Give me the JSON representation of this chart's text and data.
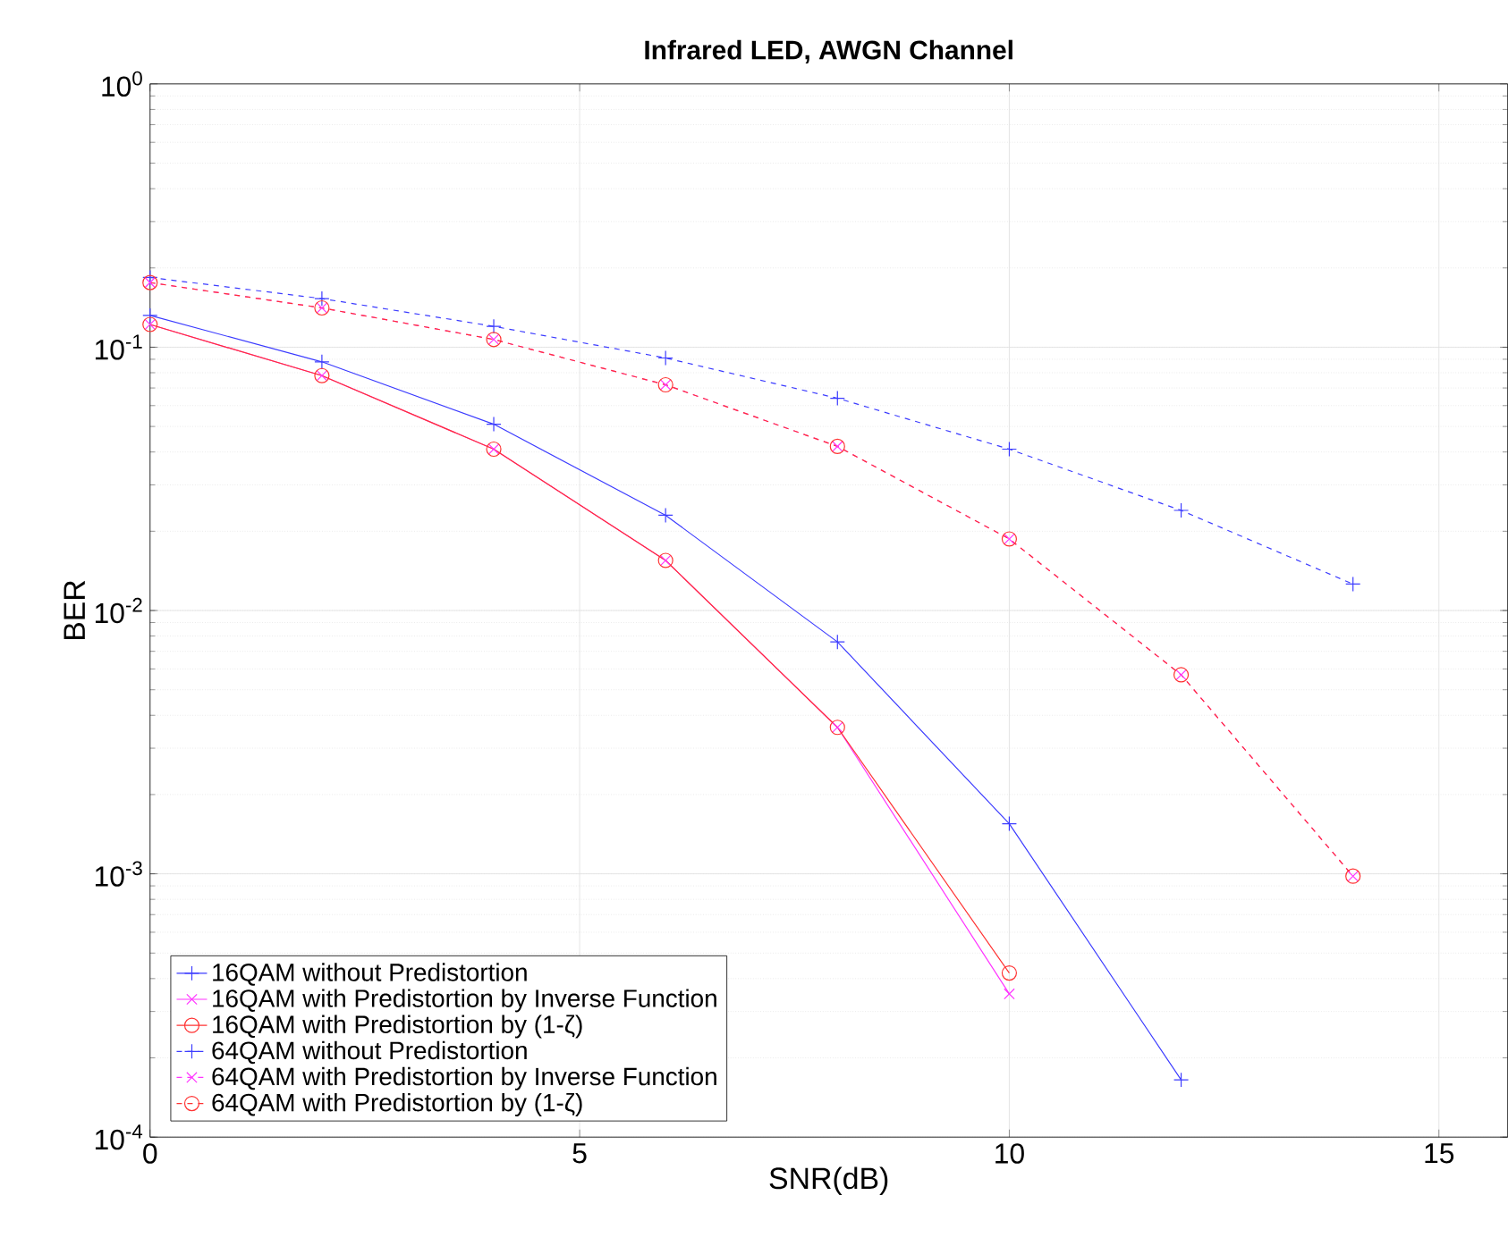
{
  "chart_data": {
    "type": "line",
    "title": "Infrared LED, AWGN Channel",
    "xlabel": "SNR(dB)",
    "ylabel": "BER",
    "log": "y",
    "grid": true,
    "legend": "bottom left",
    "xlim": [
      0,
      15.8
    ],
    "xticks": [
      0,
      5,
      10,
      15
    ],
    "ylim": [
      0.0001,
      1
    ],
    "yticks": [
      {
        "value": 0.0001,
        "label": "10$^{-4}$"
      },
      {
        "value": 0.001,
        "label": "10$^{-3}$"
      },
      {
        "value": 0.01,
        "label": "10$^{-2}$"
      },
      {
        "value": 0.1,
        "label": "10$^{-1}$"
      },
      {
        "value": 1,
        "label": "10$^{0}$"
      }
    ],
    "series": [
      {
        "name": "16QAM without Predistortion",
        "color": "#3c3cff",
        "marker": "plus",
        "line_style": "solid",
        "x": [
          0,
          2,
          4,
          6,
          8,
          10,
          12
        ],
        "values": [
          0.132,
          0.088,
          0.051,
          0.023,
          0.0076,
          0.00155,
          0.000165
        ]
      },
      {
        "name": "16QAM with Predistortion by Inverse Function",
        "color": "#ff33ff",
        "marker": "cross",
        "line_style": "solid",
        "x": [
          0,
          2,
          4,
          6,
          8,
          10
        ],
        "values": [
          0.122,
          0.078,
          0.041,
          0.0155,
          0.0036,
          0.00035
        ]
      },
      {
        "name": "16QAM with Predistortion by (1-ζ)",
        "color": "#ff3333",
        "marker": "circle",
        "line_style": "solid",
        "x": [
          0,
          2,
          4,
          6,
          8,
          10
        ],
        "values": [
          0.122,
          0.078,
          0.041,
          0.0155,
          0.0036,
          0.00042
        ]
      },
      {
        "name": "64QAM without Predistortion",
        "color": "#3c3cff",
        "marker": "plus",
        "line_style": "dashed",
        "x": [
          0,
          2,
          4,
          6,
          8,
          10,
          12,
          14
        ],
        "values": [
          0.184,
          0.153,
          0.12,
          0.091,
          0.064,
          0.041,
          0.024,
          0.0126
        ]
      },
      {
        "name": "64QAM with Predistortion by Inverse Function",
        "color": "#ff33ff",
        "marker": "cross",
        "line_style": "dashed",
        "x": [
          0,
          2,
          4,
          6,
          8,
          10,
          12,
          14
        ],
        "values": [
          0.176,
          0.141,
          0.107,
          0.072,
          0.042,
          0.0187,
          0.0057,
          0.00098
        ]
      },
      {
        "name": "64QAM with Predistortion by (1-ζ)",
        "color": "#ff3333",
        "marker": "circle",
        "line_style": "dashed",
        "x": [
          0,
          2,
          4,
          6,
          8,
          10,
          12,
          14
        ],
        "values": [
          0.176,
          0.141,
          0.107,
          0.072,
          0.042,
          0.0187,
          0.0057,
          0.00098
        ]
      }
    ]
  }
}
